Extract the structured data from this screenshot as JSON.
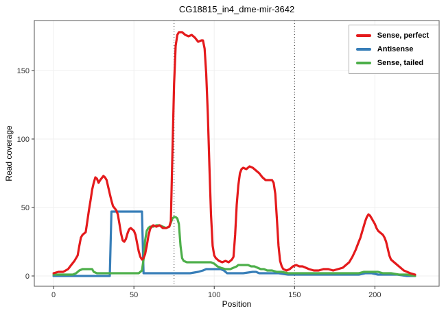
{
  "chart_data": {
    "type": "line",
    "title": "CG18815_in4_dme-mir-3642",
    "xlabel": "Position",
    "ylabel": "Read coverage",
    "xlim": [
      -12,
      240
    ],
    "ylim": [
      -7.5,
      186.5
    ],
    "xticks": [
      0,
      50,
      100,
      150,
      200
    ],
    "yticks": [
      0,
      50,
      100,
      150
    ],
    "vlines": [
      75,
      150
    ],
    "grid": "faint",
    "legend_position": "top-right",
    "series": [
      {
        "name": "Antisense",
        "color": "#377EB8",
        "points": [
          [
            0,
            0
          ],
          [
            10,
            0
          ],
          [
            20,
            0
          ],
          [
            30,
            0
          ],
          [
            35,
            0
          ],
          [
            36,
            47
          ],
          [
            40,
            47
          ],
          [
            45,
            47
          ],
          [
            50,
            47
          ],
          [
            55,
            47
          ],
          [
            56,
            2
          ],
          [
            60,
            2
          ],
          [
            65,
            2
          ],
          [
            70,
            2
          ],
          [
            75,
            2
          ],
          [
            80,
            2
          ],
          [
            85,
            2
          ],
          [
            90,
            3
          ],
          [
            93,
            4
          ],
          [
            95,
            5
          ],
          [
            100,
            5
          ],
          [
            104,
            5
          ],
          [
            106,
            4
          ],
          [
            108,
            2
          ],
          [
            112,
            2
          ],
          [
            118,
            2
          ],
          [
            124,
            3
          ],
          [
            126,
            3
          ],
          [
            128,
            2
          ],
          [
            134,
            2
          ],
          [
            140,
            2
          ],
          [
            146,
            1
          ],
          [
            152,
            1
          ],
          [
            160,
            1
          ],
          [
            168,
            1
          ],
          [
            176,
            1
          ],
          [
            184,
            1
          ],
          [
            190,
            1
          ],
          [
            194,
            2
          ],
          [
            198,
            2
          ],
          [
            202,
            1
          ],
          [
            208,
            1
          ],
          [
            214,
            1
          ],
          [
            220,
            0
          ],
          [
            225,
            0
          ]
        ]
      },
      {
        "name": "Sense, tailed",
        "color": "#4DAF4A",
        "points": [
          [
            0,
            1
          ],
          [
            6,
            1
          ],
          [
            12,
            1
          ],
          [
            14,
            2
          ],
          [
            16,
            4
          ],
          [
            18,
            5
          ],
          [
            20,
            5
          ],
          [
            22,
            5
          ],
          [
            24,
            5
          ],
          [
            25,
            3
          ],
          [
            27,
            2
          ],
          [
            30,
            2
          ],
          [
            35,
            2
          ],
          [
            40,
            2
          ],
          [
            45,
            2
          ],
          [
            50,
            2
          ],
          [
            53,
            2
          ],
          [
            55,
            4
          ],
          [
            56,
            12
          ],
          [
            57,
            26
          ],
          [
            58,
            33
          ],
          [
            59,
            35
          ],
          [
            60,
            36
          ],
          [
            62,
            36
          ],
          [
            64,
            37
          ],
          [
            66,
            37
          ],
          [
            68,
            36
          ],
          [
            70,
            35
          ],
          [
            72,
            36
          ],
          [
            73,
            39
          ],
          [
            74,
            42
          ],
          [
            75,
            43
          ],
          [
            76,
            43
          ],
          [
            77,
            42
          ],
          [
            78,
            38
          ],
          [
            79,
            22
          ],
          [
            80,
            13
          ],
          [
            81,
            11
          ],
          [
            83,
            10
          ],
          [
            86,
            10
          ],
          [
            89,
            10
          ],
          [
            92,
            10
          ],
          [
            95,
            10
          ],
          [
            98,
            10
          ],
          [
            100,
            9
          ],
          [
            102,
            7
          ],
          [
            104,
            6
          ],
          [
            107,
            5
          ],
          [
            110,
            5
          ],
          [
            112,
            6
          ],
          [
            114,
            7
          ],
          [
            115,
            8
          ],
          [
            117,
            8
          ],
          [
            119,
            8
          ],
          [
            121,
            8
          ],
          [
            123,
            7
          ],
          [
            125,
            7
          ],
          [
            127,
            6
          ],
          [
            129,
            5
          ],
          [
            131,
            5
          ],
          [
            133,
            4
          ],
          [
            136,
            4
          ],
          [
            139,
            3
          ],
          [
            142,
            3
          ],
          [
            146,
            2
          ],
          [
            150,
            2
          ],
          [
            155,
            2
          ],
          [
            160,
            2
          ],
          [
            165,
            2
          ],
          [
            170,
            2
          ],
          [
            175,
            2
          ],
          [
            180,
            2
          ],
          [
            185,
            2
          ],
          [
            190,
            2
          ],
          [
            193,
            3
          ],
          [
            196,
            3
          ],
          [
            199,
            3
          ],
          [
            202,
            3
          ],
          [
            205,
            2
          ],
          [
            210,
            2
          ],
          [
            215,
            1
          ],
          [
            220,
            1
          ],
          [
            225,
            0
          ]
        ]
      },
      {
        "name": "Sense, perfect",
        "color": "#E41A1C",
        "points": [
          [
            0,
            2
          ],
          [
            3,
            3
          ],
          [
            6,
            3
          ],
          [
            9,
            5
          ],
          [
            11,
            8
          ],
          [
            13,
            11
          ],
          [
            15,
            15
          ],
          [
            16,
            22
          ],
          [
            17,
            28
          ],
          [
            18,
            30
          ],
          [
            20,
            32
          ],
          [
            21,
            40
          ],
          [
            22,
            48
          ],
          [
            23,
            55
          ],
          [
            24,
            63
          ],
          [
            25,
            68
          ],
          [
            26,
            72
          ],
          [
            27,
            71
          ],
          [
            28,
            68
          ],
          [
            29,
            70
          ],
          [
            31,
            73
          ],
          [
            32,
            72
          ],
          [
            33,
            70
          ],
          [
            34,
            65
          ],
          [
            35,
            60
          ],
          [
            36,
            55
          ],
          [
            37,
            51
          ],
          [
            39,
            48
          ],
          [
            40,
            45
          ],
          [
            41,
            38
          ],
          [
            42,
            31
          ],
          [
            43,
            26
          ],
          [
            44,
            25
          ],
          [
            45,
            27
          ],
          [
            46,
            31
          ],
          [
            47,
            34
          ],
          [
            48,
            35
          ],
          [
            49,
            34
          ],
          [
            50,
            33
          ],
          [
            51,
            30
          ],
          [
            52,
            24
          ],
          [
            53,
            18
          ],
          [
            54,
            14
          ],
          [
            55,
            12
          ],
          [
            56,
            13
          ],
          [
            57,
            16
          ],
          [
            58,
            22
          ],
          [
            59,
            29
          ],
          [
            60,
            34
          ],
          [
            61,
            36
          ],
          [
            62,
            37
          ],
          [
            64,
            36
          ],
          [
            66,
            37
          ],
          [
            68,
            35
          ],
          [
            70,
            35
          ],
          [
            72,
            36
          ],
          [
            73,
            40
          ],
          [
            74,
            90
          ],
          [
            75,
            140
          ],
          [
            76,
            168
          ],
          [
            77,
            176
          ],
          [
            78,
            178
          ],
          [
            80,
            178
          ],
          [
            82,
            176
          ],
          [
            84,
            175
          ],
          [
            86,
            176
          ],
          [
            88,
            174
          ],
          [
            90,
            171
          ],
          [
            92,
            172
          ],
          [
            93,
            172
          ],
          [
            94,
            166
          ],
          [
            95,
            148
          ],
          [
            96,
            118
          ],
          [
            97,
            80
          ],
          [
            98,
            45
          ],
          [
            99,
            22
          ],
          [
            100,
            15
          ],
          [
            101,
            13
          ],
          [
            103,
            11
          ],
          [
            105,
            10
          ],
          [
            107,
            11
          ],
          [
            109,
            10
          ],
          [
            111,
            12
          ],
          [
            112,
            14
          ],
          [
            113,
            30
          ],
          [
            114,
            52
          ],
          [
            115,
            66
          ],
          [
            116,
            75
          ],
          [
            117,
            78
          ],
          [
            118,
            79
          ],
          [
            120,
            78
          ],
          [
            122,
            80
          ],
          [
            124,
            79
          ],
          [
            126,
            77
          ],
          [
            128,
            75
          ],
          [
            130,
            72
          ],
          [
            132,
            70
          ],
          [
            134,
            70
          ],
          [
            136,
            70
          ],
          [
            137,
            68
          ],
          [
            138,
            60
          ],
          [
            139,
            42
          ],
          [
            140,
            22
          ],
          [
            141,
            11
          ],
          [
            142,
            7
          ],
          [
            143,
            5
          ],
          [
            145,
            4
          ],
          [
            147,
            5
          ],
          [
            149,
            7
          ],
          [
            151,
            8
          ],
          [
            153,
            7
          ],
          [
            155,
            7
          ],
          [
            157,
            6
          ],
          [
            159,
            5
          ],
          [
            162,
            4
          ],
          [
            165,
            4
          ],
          [
            168,
            5
          ],
          [
            171,
            5
          ],
          [
            174,
            4
          ],
          [
            177,
            5
          ],
          [
            180,
            6
          ],
          [
            182,
            8
          ],
          [
            184,
            10
          ],
          [
            186,
            14
          ],
          [
            188,
            19
          ],
          [
            190,
            25
          ],
          [
            191,
            28
          ],
          [
            192,
            32
          ],
          [
            193,
            36
          ],
          [
            194,
            40
          ],
          [
            195,
            43
          ],
          [
            196,
            45
          ],
          [
            197,
            44
          ],
          [
            198,
            42
          ],
          [
            199,
            40
          ],
          [
            200,
            38
          ],
          [
            201,
            35
          ],
          [
            202,
            33
          ],
          [
            204,
            31
          ],
          [
            205,
            30
          ],
          [
            206,
            28
          ],
          [
            207,
            25
          ],
          [
            208,
            20
          ],
          [
            209,
            15
          ],
          [
            210,
            12
          ],
          [
            212,
            10
          ],
          [
            214,
            8
          ],
          [
            216,
            6
          ],
          [
            218,
            4
          ],
          [
            220,
            3
          ],
          [
            222,
            2
          ],
          [
            225,
            1
          ]
        ]
      }
    ],
    "legend_order": [
      "Sense, perfect",
      "Antisense",
      "Sense, tailed"
    ]
  }
}
